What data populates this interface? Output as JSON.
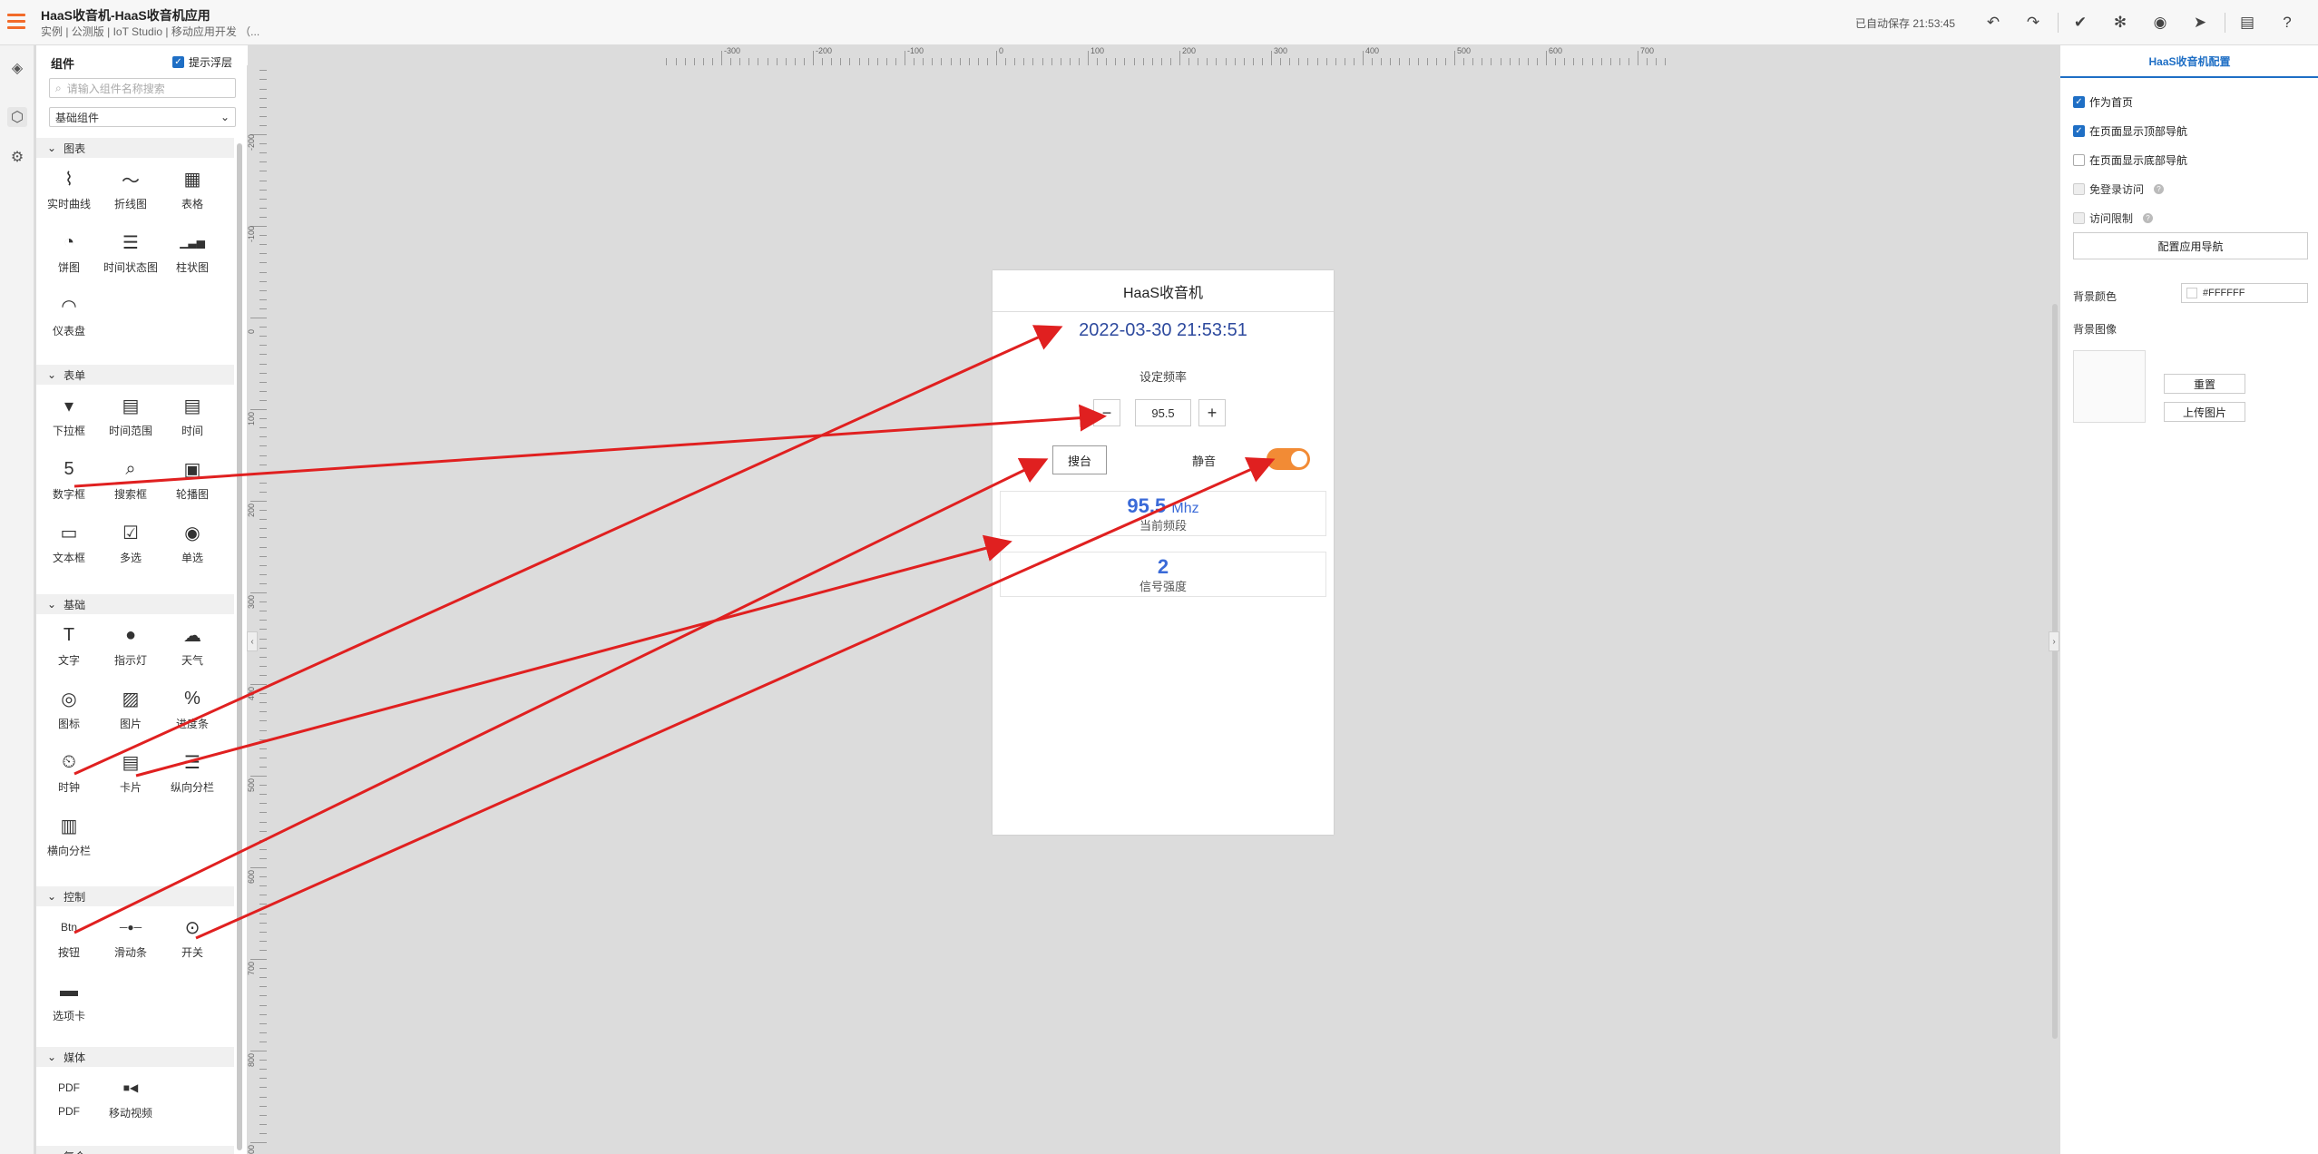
{
  "app": {
    "title": "HaaS收音机-HaaS收音机应用",
    "breadcrumb": "实例 | 公测版 | IoT Studio | 移动应用开发 （...",
    "saved_status": "已自动保存 21:53:45"
  },
  "left_panel": {
    "header": "组件",
    "float_tip_label": "提示浮层",
    "float_tip_checked": true,
    "search_placeholder": "请输入组件名称搜索",
    "category_select": "基础组件",
    "sections": [
      {
        "title": "图表",
        "items": [
          {
            "label": "实时曲线",
            "icon": "realtime-curve-icon",
            "glyph": "⌇"
          },
          {
            "label": "折线图",
            "icon": "line-chart-icon",
            "glyph": "〜"
          },
          {
            "label": "表格",
            "icon": "table-icon",
            "glyph": "▦"
          },
          {
            "label": "饼图",
            "icon": "pie-chart-icon",
            "glyph": "◔"
          },
          {
            "label": "时间状态图",
            "icon": "time-status-icon",
            "glyph": "☰"
          },
          {
            "label": "柱状图",
            "icon": "bar-chart-icon",
            "glyph": "▁▃▅"
          },
          {
            "label": "仪表盘",
            "icon": "gauge-icon",
            "glyph": "◠"
          }
        ]
      },
      {
        "title": "表单",
        "items": [
          {
            "label": "下拉框",
            "icon": "dropdown-icon",
            "glyph": "▾"
          },
          {
            "label": "时间范围",
            "icon": "date-range-icon",
            "glyph": "▤"
          },
          {
            "label": "时间",
            "icon": "calendar-icon",
            "glyph": "▤"
          },
          {
            "label": "数字框",
            "icon": "number-box-icon",
            "glyph": "5"
          },
          {
            "label": "搜索框",
            "icon": "search-box-icon",
            "glyph": "⌕"
          },
          {
            "label": "轮播图",
            "icon": "carousel-icon",
            "glyph": "▣"
          },
          {
            "label": "文本框",
            "icon": "textbox-icon",
            "glyph": "▭"
          },
          {
            "label": "多选",
            "icon": "checkbox-icon",
            "glyph": "☑"
          },
          {
            "label": "单选",
            "icon": "radio-icon",
            "glyph": "◉"
          }
        ]
      },
      {
        "title": "基础",
        "items": [
          {
            "label": "文字",
            "icon": "text-icon",
            "glyph": "T"
          },
          {
            "label": "指示灯",
            "icon": "indicator-icon",
            "glyph": "●"
          },
          {
            "label": "天气",
            "icon": "weather-icon",
            "glyph": "☁"
          },
          {
            "label": "图标",
            "icon": "icon-component-icon",
            "glyph": "◎"
          },
          {
            "label": "图片",
            "icon": "image-icon",
            "glyph": "▨"
          },
          {
            "label": "进度条",
            "icon": "progress-icon",
            "glyph": "%"
          },
          {
            "label": "时钟",
            "icon": "clock-icon",
            "glyph": "⏲"
          },
          {
            "label": "卡片",
            "icon": "card-icon",
            "glyph": "▤"
          },
          {
            "label": "纵向分栏",
            "icon": "vertical-columns-icon",
            "glyph": "☰"
          },
          {
            "label": "横向分栏",
            "icon": "horizontal-columns-icon",
            "glyph": "▥"
          }
        ]
      },
      {
        "title": "控制",
        "items": [
          {
            "label": "按钮",
            "icon": "button-icon",
            "glyph": "Btn"
          },
          {
            "label": "滑动条",
            "icon": "slider-icon",
            "glyph": "─●─"
          },
          {
            "label": "开关",
            "icon": "switch-icon",
            "glyph": "⊙"
          },
          {
            "label": "选项卡",
            "icon": "tabs-icon",
            "glyph": "▬"
          }
        ]
      },
      {
        "title": "媒体",
        "items": [
          {
            "label": "PDF",
            "icon": "pdf-icon",
            "glyph": "PDF"
          },
          {
            "label": "移动视频",
            "icon": "video-icon",
            "glyph": "■◀"
          }
        ]
      },
      {
        "title": "复合",
        "items": []
      }
    ]
  },
  "ruler": {
    "h_labels": [
      "-300",
      "-200",
      "-100",
      "0",
      "100",
      "200",
      "300",
      "400",
      "500",
      "600",
      "700"
    ],
    "v_labels": [
      "-200",
      "-100",
      "0",
      "100",
      "200",
      "300",
      "400",
      "500",
      "600",
      "700",
      "800",
      "900"
    ]
  },
  "phone": {
    "title": "HaaS收音机",
    "clock": "2022-03-30 21:53:51",
    "set_freq_label": "设定频率",
    "minus": "−",
    "plus": "+",
    "freq_value": "95.5",
    "tune_button": "搜台",
    "mute_label": "静音",
    "mute_on": true,
    "freq_card": {
      "value": "95.5",
      "unit": "Mhz",
      "caption": "当前频段"
    },
    "signal_card": {
      "value": "2",
      "caption": "信号强度"
    }
  },
  "right_panel": {
    "tab": "HaaS收音机配置",
    "options": [
      {
        "label": "作为首页",
        "checked": true,
        "disabled": false,
        "help": false
      },
      {
        "label": "在页面显示顶部导航",
        "checked": true,
        "disabled": false,
        "help": false
      },
      {
        "label": "在页面显示底部导航",
        "checked": false,
        "disabled": false,
        "help": false
      },
      {
        "label": "免登录访问",
        "checked": false,
        "disabled": true,
        "help": true
      },
      {
        "label": "访问限制",
        "checked": false,
        "disabled": true,
        "help": true
      }
    ],
    "config_nav_button": "配置应用导航",
    "bg_color_label": "背景颜色",
    "bg_color_value": "#FFFFFF",
    "bg_image_label": "背景图像",
    "reset_button": "重置",
    "upload_button": "上传图片"
  },
  "colors": {
    "accent": "#f26b2a",
    "primary": "#1f6fc5",
    "clock_text": "#2e4a9e",
    "value_text": "#3a6ad8",
    "toggle_on": "#f28b35",
    "annotation_arrow": "#e02020"
  }
}
